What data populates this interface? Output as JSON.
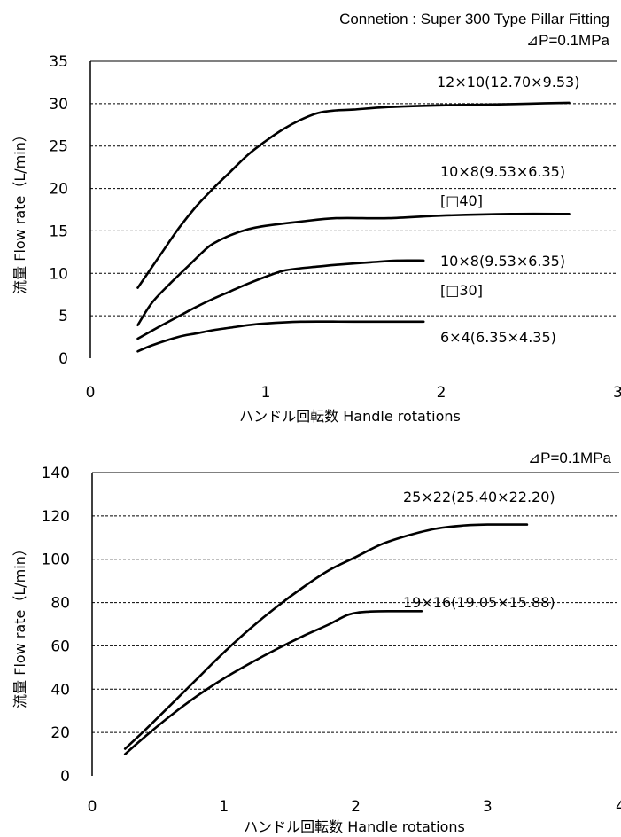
{
  "header": {
    "title": "Connetion : Super 300 Type Pillar Fitting"
  },
  "chart_data": [
    {
      "type": "line",
      "subtitle": "⊿P=0.1MPa",
      "xlabel": "ハンドル回転数 Handle rotations",
      "ylabel": "流量 Flow rate（L/min）",
      "xlim": [
        0,
        3
      ],
      "ylim": [
        0,
        35
      ],
      "x_ticks": [
        "0",
        "1",
        "2",
        "3"
      ],
      "y_ticks": [
        "0",
        "5",
        "10",
        "15",
        "20",
        "25",
        "30",
        "35"
      ],
      "grid": "horizontal dashed",
      "series": [
        {
          "name": "12×10(12.70×9.53)",
          "points": [
            [
              0.27,
              8.3
            ],
            [
              0.4,
              12.2
            ],
            [
              0.5,
              15.2
            ],
            [
              0.6,
              17.8
            ],
            [
              0.7,
              20.0
            ],
            [
              0.8,
              22.0
            ],
            [
              0.9,
              24.0
            ],
            [
              1.0,
              25.6
            ],
            [
              1.1,
              27.0
            ],
            [
              1.2,
              28.1
            ],
            [
              1.3,
              28.9
            ],
            [
              1.4,
              29.2
            ],
            [
              1.5,
              29.3
            ],
            [
              1.7,
              29.6
            ],
            [
              2.0,
              29.8
            ],
            [
              2.3,
              29.9
            ],
            [
              2.5,
              30.0
            ],
            [
              2.73,
              30.1
            ]
          ]
        },
        {
          "name": "10×8(9.53×6.35) [□40]",
          "points": [
            [
              0.27,
              3.9
            ],
            [
              0.35,
              6.5
            ],
            [
              0.45,
              8.7
            ],
            [
              0.55,
              10.7
            ],
            [
              0.65,
              12.7
            ],
            [
              0.7,
              13.5
            ],
            [
              0.8,
              14.5
            ],
            [
              0.9,
              15.2
            ],
            [
              1.0,
              15.6
            ],
            [
              1.2,
              16.1
            ],
            [
              1.4,
              16.5
            ],
            [
              1.7,
              16.5
            ],
            [
              2.0,
              16.8
            ],
            [
              2.4,
              17.0
            ],
            [
              2.73,
              17.0
            ]
          ]
        },
        {
          "name": "10×8(9.53×6.35) [□30]",
          "points": [
            [
              0.27,
              2.3
            ],
            [
              0.4,
              3.8
            ],
            [
              0.5,
              4.9
            ],
            [
              0.6,
              6.0
            ],
            [
              0.7,
              7.0
            ],
            [
              0.8,
              7.9
            ],
            [
              0.9,
              8.8
            ],
            [
              1.0,
              9.6
            ],
            [
              1.1,
              10.3
            ],
            [
              1.2,
              10.6
            ],
            [
              1.3,
              10.8
            ],
            [
              1.4,
              11.0
            ],
            [
              1.6,
              11.3
            ],
            [
              1.75,
              11.5
            ],
            [
              1.9,
              11.5
            ]
          ]
        },
        {
          "name": "6×4(6.35×4.35)",
          "points": [
            [
              0.27,
              0.8
            ],
            [
              0.35,
              1.5
            ],
            [
              0.5,
              2.5
            ],
            [
              0.6,
              2.9
            ],
            [
              0.7,
              3.3
            ],
            [
              0.8,
              3.6
            ],
            [
              0.9,
              3.9
            ],
            [
              1.0,
              4.1
            ],
            [
              1.2,
              4.3
            ],
            [
              1.5,
              4.3
            ],
            [
              1.9,
              4.3
            ]
          ]
        }
      ],
      "labels": {
        "s1": "12×10(12.70×9.53)",
        "s2a": "10×8(9.53×6.35)",
        "s2b": "[□40]",
        "s3a": "10×8(9.53×6.35)",
        "s3b": "[□30]",
        "s4": "6×4(6.35×4.35)"
      }
    },
    {
      "type": "line",
      "subtitle": "⊿P=0.1MPa",
      "xlabel": "ハンドル回転数 Handle rotations",
      "ylabel": "流量 Flow rate（L/min）",
      "xlim": [
        0,
        4
      ],
      "ylim": [
        0,
        140
      ],
      "x_ticks": [
        "0",
        "1",
        "2",
        "3",
        "4"
      ],
      "y_ticks": [
        "0",
        "20",
        "40",
        "60",
        "80",
        "100",
        "120",
        "140"
      ],
      "grid": "horizontal dashed",
      "series": [
        {
          "name": "25×22(25.40×22.20)",
          "points": [
            [
              0.25,
              12.5
            ],
            [
              0.4,
              21.0
            ],
            [
              0.6,
              33.0
            ],
            [
              0.8,
              45.0
            ],
            [
              1.0,
              57.0
            ],
            [
              1.2,
              68.0
            ],
            [
              1.4,
              78.0
            ],
            [
              1.6,
              87.0
            ],
            [
              1.8,
              95.0
            ],
            [
              2.0,
              101.0
            ],
            [
              2.2,
              107.0
            ],
            [
              2.4,
              111.0
            ],
            [
              2.6,
              114.0
            ],
            [
              2.8,
              115.5
            ],
            [
              3.0,
              116.0
            ],
            [
              3.3,
              116.0
            ]
          ]
        },
        {
          "name": "19×16(19.05×15.88)",
          "points": [
            [
              0.25,
              10.0
            ],
            [
              0.4,
              18.0
            ],
            [
              0.6,
              28.0
            ],
            [
              0.8,
              37.0
            ],
            [
              1.0,
              45.0
            ],
            [
              1.2,
              52.0
            ],
            [
              1.4,
              58.5
            ],
            [
              1.6,
              64.5
            ],
            [
              1.8,
              70.0
            ],
            [
              1.95,
              74.5
            ],
            [
              2.1,
              75.8
            ],
            [
              2.3,
              76.0
            ],
            [
              2.5,
              76.0
            ]
          ]
        }
      ],
      "labels": {
        "s1": "25×22(25.40×22.20)",
        "s2": "19×16(19.05×15.88)"
      }
    }
  ]
}
